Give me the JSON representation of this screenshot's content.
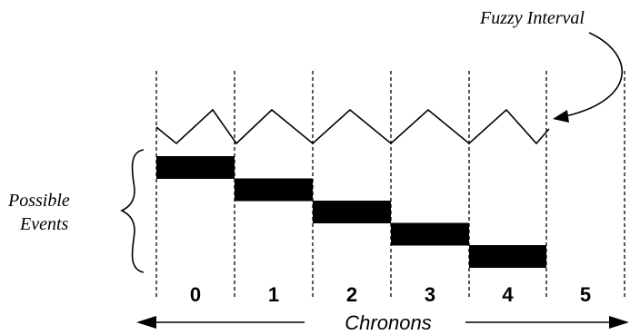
{
  "labels": {
    "fuzzy_interval": "Fuzzy Interval",
    "possible_events_line1": "Possible",
    "possible_events_line2": "Events",
    "chronons": "Chronons"
  },
  "chronons": [
    "0",
    "1",
    "2",
    "3",
    "4",
    "5"
  ],
  "events": [
    {
      "chronon": 0
    },
    {
      "chronon": 1
    },
    {
      "chronon": 2
    },
    {
      "chronon": 3
    },
    {
      "chronon": 4
    }
  ],
  "colors": {
    "ink": "#000000",
    "background": "#ffffff"
  }
}
